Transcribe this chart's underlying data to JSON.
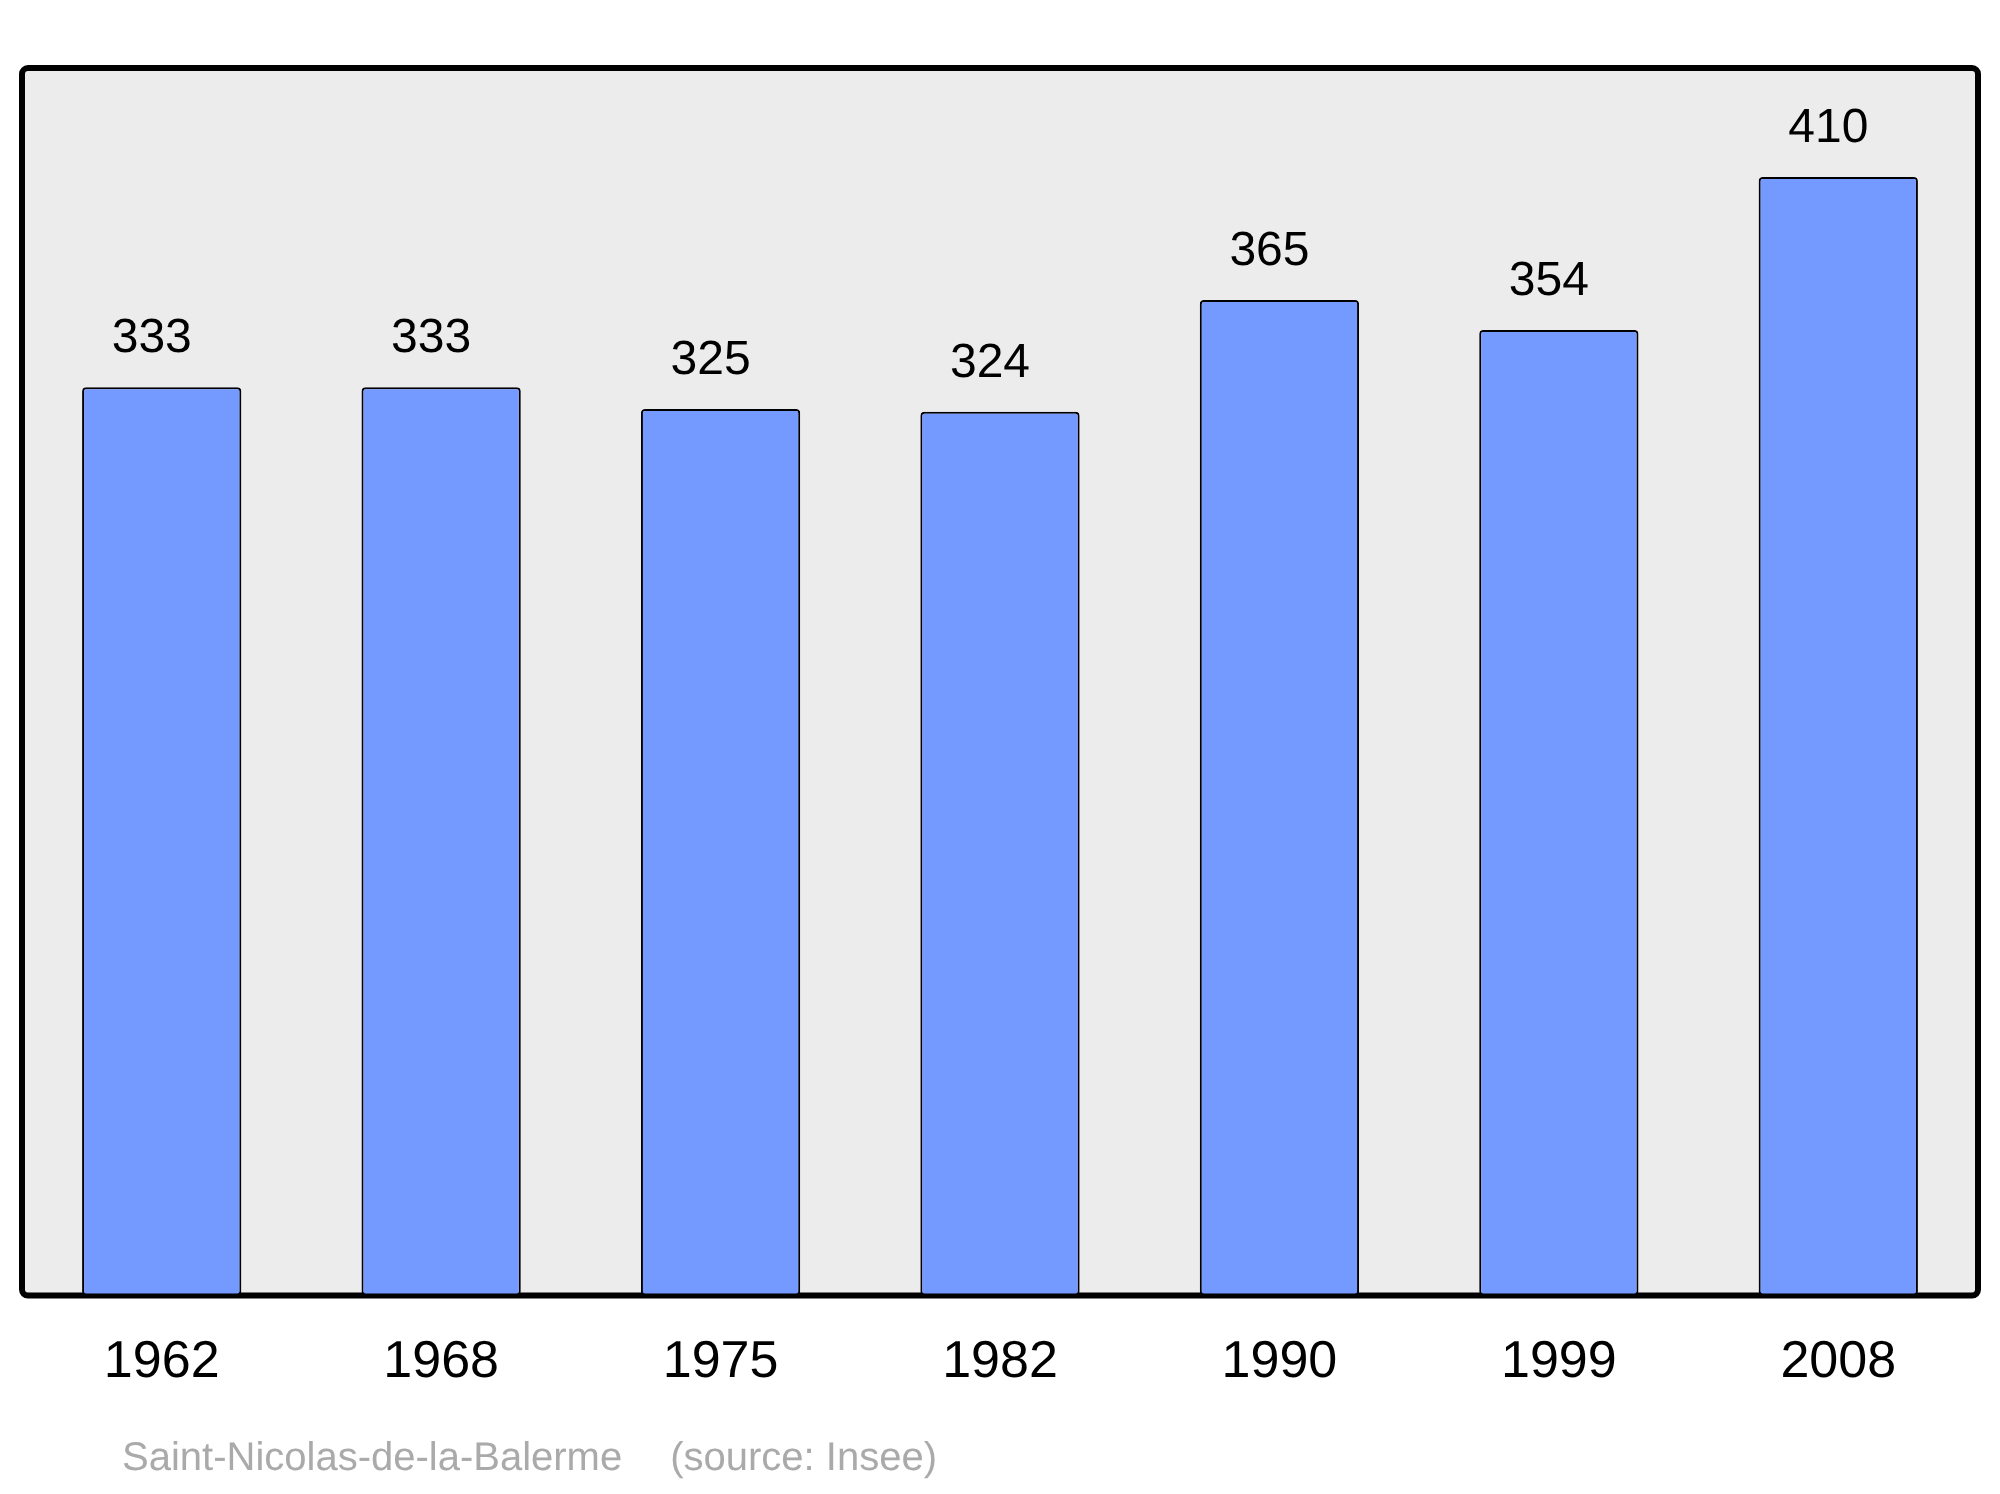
{
  "chart_data": {
    "type": "bar",
    "categories": [
      "1962",
      "1968",
      "1975",
      "1982",
      "1990",
      "1999",
      "2008"
    ],
    "values": [
      333,
      333,
      325,
      324,
      365,
      354,
      410
    ],
    "color": "#7499ff",
    "data_labels": true,
    "grid": false,
    "legend": false,
    "annotations": [
      "Saint-Nicolas-de-la-Balerme",
      "(source: Insee)"
    ]
  }
}
